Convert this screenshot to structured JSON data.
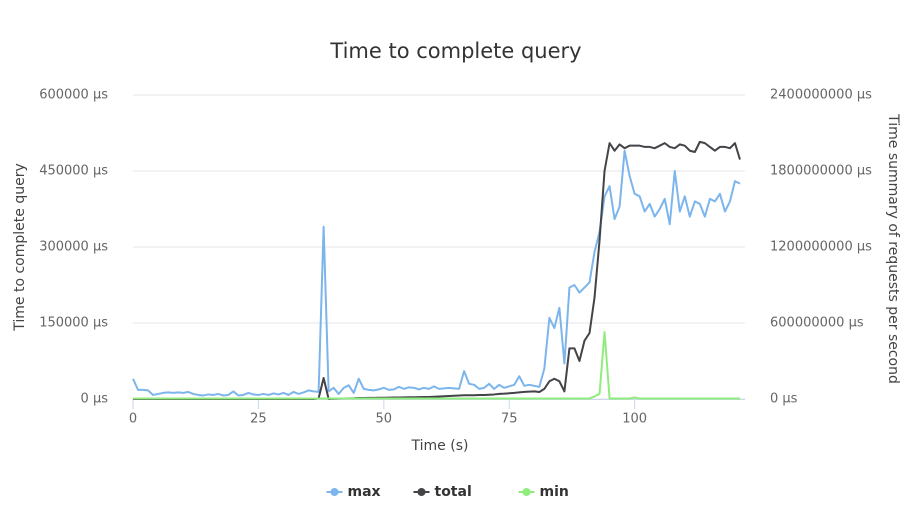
{
  "chart_data": {
    "type": "line",
    "title": "Time to complete query",
    "x_label": "Time (s)",
    "y_label": "Time to complete query",
    "y2_label": "Time summary of requests per second",
    "x": [
      0,
      1,
      2,
      3,
      4,
      5,
      6,
      7,
      8,
      9,
      10,
      11,
      12,
      13,
      14,
      15,
      16,
      17,
      18,
      19,
      20,
      21,
      22,
      23,
      24,
      25,
      26,
      27,
      28,
      29,
      30,
      31,
      32,
      33,
      34,
      35,
      36,
      37,
      38,
      39,
      40,
      41,
      42,
      43,
      44,
      45,
      46,
      47,
      48,
      49,
      50,
      51,
      52,
      53,
      54,
      55,
      56,
      57,
      58,
      59,
      60,
      61,
      62,
      63,
      64,
      65,
      66,
      67,
      68,
      69,
      70,
      71,
      72,
      73,
      74,
      75,
      76,
      77,
      78,
      79,
      80,
      81,
      82,
      83,
      84,
      85,
      86,
      87,
      88,
      89,
      90,
      91,
      92,
      93,
      94,
      95,
      96,
      97,
      98,
      99,
      100,
      101,
      102,
      103,
      104,
      105,
      106,
      107,
      108,
      109,
      110,
      111,
      112,
      113,
      114,
      115,
      116,
      117,
      118,
      119,
      120,
      121
    ],
    "xlim": [
      0,
      122
    ],
    "xticks": [
      0,
      25,
      50,
      75,
      100
    ],
    "ylim": [
      0,
      600000
    ],
    "yticks": [
      {
        "value": 0,
        "label": "0 µs"
      },
      {
        "value": 150000,
        "label": "150000 µs"
      },
      {
        "value": 300000,
        "label": "300000 µs"
      },
      {
        "value": 450000,
        "label": "450000 µs"
      },
      {
        "value": 600000,
        "label": "600000 µs"
      }
    ],
    "y2lim": [
      0,
      2400000000
    ],
    "y2ticks": [
      {
        "value": 0,
        "label": "0 µs"
      },
      {
        "value": 600000000,
        "label": "600000000 µs"
      },
      {
        "value": 1200000000,
        "label": "1200000000 µs"
      },
      {
        "value": 1800000000,
        "label": "1800000000 µs"
      },
      {
        "value": 2400000000,
        "label": "2400000000 µs"
      }
    ],
    "grid": true,
    "legend": "bottom",
    "series": [
      {
        "name": "max",
        "color": "#7cb5ec",
        "values": [
          40000,
          18000,
          18000,
          17000,
          8000,
          10000,
          12000,
          13000,
          12000,
          13000,
          12000,
          14000,
          10000,
          8000,
          7000,
          9000,
          8000,
          10000,
          7000,
          8000,
          15000,
          7000,
          8000,
          12000,
          9000,
          8000,
          10000,
          8000,
          11000,
          9000,
          12000,
          8000,
          14000,
          10000,
          13000,
          17000,
          15000,
          14000,
          340000,
          15000,
          22000,
          10000,
          22000,
          27000,
          12000,
          40000,
          20000,
          18000,
          17000,
          19000,
          22000,
          18000,
          19000,
          24000,
          20000,
          23000,
          22000,
          19000,
          22000,
          20000,
          25000,
          20000,
          21000,
          22000,
          21000,
          20000,
          55000,
          30000,
          28000,
          20000,
          22000,
          30000,
          20000,
          28000,
          22000,
          25000,
          28000,
          45000,
          26000,
          28000,
          26000,
          24000,
          60000,
          160000,
          140000,
          180000,
          70000,
          220000,
          225000,
          210000,
          220000,
          230000,
          290000,
          330000,
          400000,
          420000,
          355000,
          380000,
          490000,
          440000,
          405000,
          400000,
          370000,
          385000,
          360000,
          375000,
          395000,
          345000,
          450000,
          370000,
          400000,
          360000,
          390000,
          385000,
          360000,
          395000,
          390000,
          405000,
          370000,
          390000,
          430000,
          425000
        ]
      },
      {
        "name": "total",
        "color": "#434348",
        "axis": "y2",
        "values": [
          0,
          0,
          0,
          0,
          0,
          0,
          0,
          0,
          0,
          0,
          0,
          0,
          0,
          0,
          0,
          0,
          0,
          0,
          0,
          0,
          0,
          0,
          0,
          0,
          0,
          0,
          0,
          0,
          0,
          0,
          0,
          0,
          0,
          0,
          0,
          0,
          0,
          5000000,
          166000000,
          0,
          2000000,
          3000000,
          4000000,
          5000000,
          6000000,
          8000000,
          8000000,
          9000000,
          9000000,
          10000000,
          10000000,
          11000000,
          12000000,
          12000000,
          13000000,
          14000000,
          14000000,
          15000000,
          16000000,
          16000000,
          18000000,
          20000000,
          22000000,
          24000000,
          26000000,
          28000000,
          30000000,
          30000000,
          30000000,
          32000000,
          32000000,
          34000000,
          36000000,
          40000000,
          42000000,
          45000000,
          48000000,
          52000000,
          56000000,
          58000000,
          60000000,
          55000000,
          80000000,
          140000000,
          160000000,
          140000000,
          60000000,
          400000000,
          400000000,
          300000000,
          460000000,
          520000000,
          800000000,
          1250000000,
          1800000000,
          2020000000,
          1960000000,
          2010000000,
          1980000000,
          2000000000,
          2000000000,
          2000000000,
          1990000000,
          1990000000,
          1980000000,
          2000000000,
          2020000000,
          1990000000,
          1980000000,
          2010000000,
          2000000000,
          1960000000,
          1950000000,
          2030000000,
          2020000000,
          1990000000,
          1960000000,
          1990000000,
          1990000000,
          1980000000,
          2020000000,
          1890000000
        ]
      },
      {
        "name": "min",
        "color": "#90ed7d",
        "values": [
          1000,
          1000,
          1000,
          1000,
          1000,
          1000,
          1000,
          1000,
          1000,
          1000,
          1000,
          1000,
          1000,
          1000,
          1000,
          1000,
          1000,
          1000,
          1000,
          1000,
          1000,
          1000,
          1000,
          1000,
          1000,
          1000,
          1000,
          1000,
          1000,
          1000,
          1000,
          1000,
          1000,
          1000,
          1000,
          1000,
          1000,
          1000,
          1000,
          1000,
          1000,
          1000,
          1000,
          1000,
          1000,
          1000,
          1000,
          1000,
          1000,
          1000,
          1000,
          1000,
          1000,
          1000,
          1000,
          1000,
          1000,
          1000,
          1000,
          1000,
          1000,
          1000,
          1000,
          1000,
          1000,
          1000,
          1000,
          1000,
          1000,
          1000,
          1000,
          1000,
          1000,
          1000,
          1000,
          1000,
          1000,
          1000,
          1000,
          1000,
          1000,
          1000,
          1000,
          1000,
          1000,
          1000,
          1000,
          1000,
          1000,
          1000,
          1000,
          1000,
          5000,
          10000,
          132000,
          1000,
          1000,
          1000,
          1000,
          1000,
          3000,
          1000,
          1000,
          1000,
          1000,
          1000,
          1000,
          1000,
          1000,
          1000,
          1000,
          1000,
          1000,
          1000,
          1000,
          1000,
          1000,
          1000,
          1000,
          1000,
          1000,
          1000
        ]
      }
    ]
  }
}
